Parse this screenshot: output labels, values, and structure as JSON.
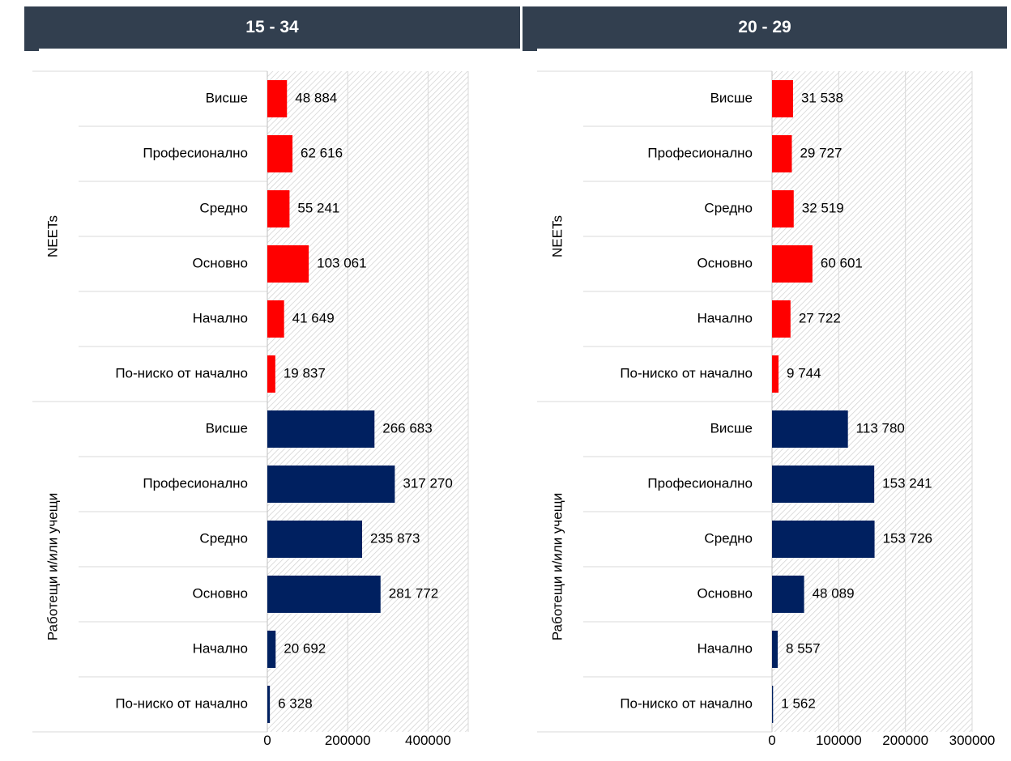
{
  "chart_data": [
    {
      "type": "bar",
      "orientation": "horizontal",
      "title": "15 - 34",
      "groups": [
        "NEETs",
        "Работещи и/или учещи"
      ],
      "categories": [
        "Висше",
        "Професионално",
        "Средно",
        "Основно",
        "Начално",
        "По-ниско от начално"
      ],
      "series": [
        {
          "group": "NEETs",
          "color": "#ff0000",
          "values": [
            48884,
            62616,
            55241,
            103061,
            41649,
            19837
          ],
          "labels": [
            "48 884",
            "62 616",
            "55 241",
            "103 061",
            "41 649",
            "19 837"
          ]
        },
        {
          "group": "Работещи и/или учещи",
          "color": "#002060",
          "values": [
            266683,
            317270,
            235873,
            281772,
            20692,
            6328
          ],
          "labels": [
            "266 683",
            "317 270",
            "235 873",
            "281 772",
            "20 692",
            "6 328"
          ]
        }
      ],
      "xlim": [
        0,
        500000
      ],
      "xticks": [
        "0",
        "200000",
        "400000"
      ],
      "xtick_values": [
        0,
        200000,
        400000
      ],
      "grid": true
    },
    {
      "type": "bar",
      "orientation": "horizontal",
      "title": "20 - 29",
      "groups": [
        "NEETs",
        "Работещи и/или учещи"
      ],
      "categories": [
        "Висше",
        "Професионално",
        "Средно",
        "Основно",
        "Начално",
        "По-ниско от начално"
      ],
      "series": [
        {
          "group": "NEETs",
          "color": "#ff0000",
          "values": [
            31538,
            29727,
            32519,
            60601,
            27722,
            9744
          ],
          "labels": [
            "31 538",
            "29 727",
            "32 519",
            "60 601",
            "27 722",
            "9 744"
          ]
        },
        {
          "group": "Работещи и/или учещи",
          "color": "#002060",
          "values": [
            113780,
            153241,
            153726,
            48089,
            8557,
            1562
          ],
          "labels": [
            "113 780",
            "153 241",
            "153 726",
            "48 089",
            "8 557",
            "1 562"
          ]
        }
      ],
      "xlim": [
        0,
        300000
      ],
      "xticks": [
        "0",
        "100000",
        "200000",
        "300000"
      ],
      "xtick_values": [
        0,
        100000,
        200000,
        300000
      ],
      "grid": true
    }
  ]
}
